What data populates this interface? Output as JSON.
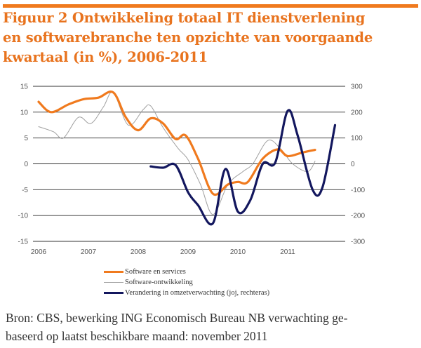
{
  "title_lines": [
    "Figuur 2 Ontwikkeling totaal IT dienstverlening",
    "en softwarebranche ten opzichte van voorgaande",
    "kwartaal (in %), 2006-2011"
  ],
  "source_lines": [
    "Bron: CBS, bewerking ING Economisch Bureau NB verwachting ge-",
    "baseerd op laatst beschikbare maand: november 2011"
  ],
  "colors": {
    "accent": "#f07a1e",
    "orange_series": "#f07a1e",
    "grey_series": "#a0a0a0",
    "navy_series": "#13175e",
    "grid": "#333333"
  },
  "chart_data": {
    "type": "line",
    "title": "Figuur 2 Ontwikkeling totaal IT dienstverlening en softwarebranche ten opzichte van voorgaande kwartaal (in %), 2006-2011",
    "xlabel": "",
    "ylabel": "",
    "x_ticks": [
      "2006",
      "2007",
      "2008",
      "2009",
      "2010",
      "2011"
    ],
    "xlim": [
      2006,
      2012.1
    ],
    "y_left": {
      "ticks": [
        "15",
        "10",
        "5",
        "0",
        "-5",
        "-10",
        "-15"
      ],
      "lim": [
        -15,
        15
      ]
    },
    "y_right": {
      "ticks": [
        "300",
        "200",
        "100",
        "0",
        "-100",
        "-200",
        "-300"
      ],
      "lim": [
        -300,
        300
      ]
    },
    "grid": "horizontal",
    "legend_position": "bottom",
    "series": [
      {
        "name": "Software en services",
        "axis": "left",
        "color": "#f07a1e",
        "style": "thick",
        "x": [
          2006.0,
          2006.25,
          2006.6,
          2006.9,
          2007.2,
          2007.5,
          2007.75,
          2008.0,
          2008.25,
          2008.5,
          2008.75,
          2008.95,
          2009.2,
          2009.5,
          2009.8,
          2010.0,
          2010.2,
          2010.5,
          2010.8,
          2011.0,
          2011.3,
          2011.55
        ],
        "values": [
          12,
          10,
          11.5,
          12.5,
          12.8,
          13.8,
          9,
          6.5,
          8.8,
          7.8,
          4.8,
          5.5,
          1,
          -5.8,
          -4,
          -3.5,
          -3.5,
          1,
          2.8,
          1.5,
          2.2,
          2.7
        ]
      },
      {
        "name": "Software-ontwikkeling",
        "axis": "left",
        "color": "#a0a0a0",
        "style": "thin",
        "x": [
          2006.0,
          2006.3,
          2006.5,
          2006.8,
          2007.05,
          2007.3,
          2007.5,
          2007.8,
          2008.1,
          2008.25,
          2008.5,
          2008.8,
          2009.0,
          2009.25,
          2009.5,
          2009.8,
          2010.1,
          2010.3,
          2010.6,
          2010.85,
          2011.1,
          2011.4,
          2011.55
        ],
        "values": [
          7.2,
          6.2,
          5,
          9,
          7.8,
          11,
          13.8,
          7.5,
          10.5,
          11.2,
          7,
          3,
          0.8,
          -4,
          -9.8,
          -4,
          -1.5,
          0,
          4.5,
          3,
          0,
          -1.5,
          0.5
        ]
      },
      {
        "name": "Verandering in omzetverwachting (joj, rechteras)",
        "axis": "right",
        "color": "#13175e",
        "style": "thick",
        "x": [
          2008.25,
          2008.5,
          2008.75,
          2009.0,
          2009.2,
          2009.5,
          2009.75,
          2010.0,
          2010.25,
          2010.5,
          2010.75,
          2011.0,
          2011.2,
          2011.5,
          2011.7,
          2011.95
        ],
        "values": [
          -10,
          -15,
          -5,
          -110,
          -160,
          -230,
          -20,
          -185,
          -140,
          0,
          5,
          205,
          110,
          -100,
          -90,
          150
        ]
      }
    ]
  }
}
